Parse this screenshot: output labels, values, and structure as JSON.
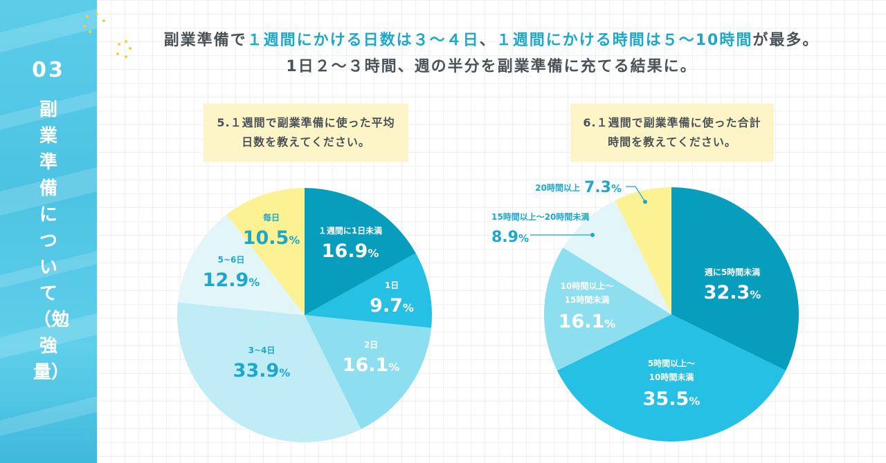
{
  "section": {
    "number": "03",
    "title": "副業準備について（勉強量）"
  },
  "headline": {
    "line1_parts": [
      "副業準備で",
      "１週間にかける日数は３〜４日",
      "、",
      "１週間にかける時間は５〜10時間",
      "が最多。"
    ],
    "line2": "1日２〜３時間、週の半分を副業準備に充てる結果に。"
  },
  "colors": {
    "sidebar": "#4cc3e3",
    "accent": "#1ba8cc",
    "text": "#4a5258",
    "question_box": "#fdf5c8",
    "pie": [
      "#079ebd",
      "#25c0e3",
      "#8ddff0",
      "#c0ecf5",
      "#e2f6fa",
      "#fcf193"
    ]
  },
  "chart_data": [
    {
      "type": "pie",
      "title": "5.１週間で副業準備に使った平均日数を教えてください。",
      "categories": [
        "１週間に1日未満",
        "1日",
        "2日",
        "3~4日",
        "5~6日",
        "毎日"
      ],
      "values": [
        16.9,
        9.7,
        16.1,
        33.9,
        12.9,
        10.5
      ],
      "value_labels": [
        {
          "num": "16.9",
          "unit": "%"
        },
        {
          "num": "9.7",
          "unit": "%"
        },
        {
          "num": "16.1",
          "unit": "%"
        },
        {
          "num": "33.9",
          "unit": "%"
        },
        {
          "num": "12.9",
          "unit": "%"
        },
        {
          "num": "10.5",
          "unit": "%"
        }
      ],
      "start_angle_deg": 0,
      "direction": "clockwise"
    },
    {
      "type": "pie",
      "title": "6.１週間で副業準備に使った合計時間を教えてください。",
      "categories": [
        "週に5時間未満",
        "5時間以上〜10時間未満",
        "10時間以上〜15時間未満",
        "15時間以上〜20時間未満",
        "20時間以上"
      ],
      "values": [
        32.3,
        35.5,
        16.1,
        8.9,
        7.3
      ],
      "value_labels": [
        {
          "num": "32.3",
          "unit": "%"
        },
        {
          "num": "35.5",
          "unit": "%"
        },
        {
          "num": "16.1",
          "unit": "%"
        },
        {
          "num": "8.9",
          "unit": "%"
        },
        {
          "num": "7.3",
          "unit": "%"
        }
      ],
      "start_angle_deg": 0,
      "direction": "clockwise"
    }
  ]
}
